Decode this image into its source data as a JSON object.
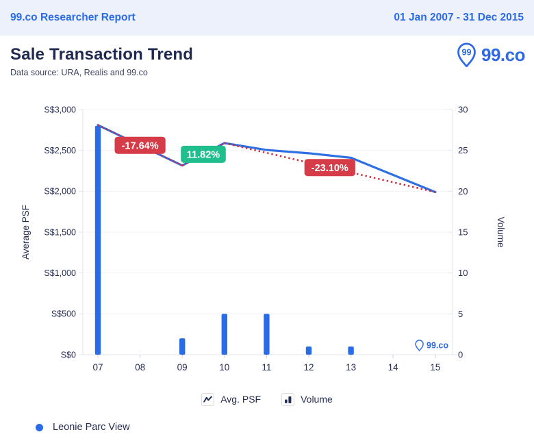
{
  "header": {
    "report_title": "99.co Researcher Report",
    "date_range": "01 Jan 2007 - 31 Dec 2015"
  },
  "title_block": {
    "title": "Sale Transaction Trend",
    "subtitle": "Data source: URA, Realis and 99.co",
    "brand": "99.co",
    "brand_pin_label": "99"
  },
  "chart_data": {
    "type": "line+bar combo",
    "categories": [
      "07",
      "08",
      "09",
      "10",
      "11",
      "12",
      "13",
      "14",
      "15"
    ],
    "series": [
      {
        "name": "Avg. PSF",
        "type": "line",
        "axis": "left",
        "color": "#2e6fe2",
        "values": [
          2810,
          null,
          2315,
          2590,
          2505,
          2465,
          2410,
          null,
          1990
        ]
      },
      {
        "name": "Volume",
        "type": "bar",
        "axis": "right",
        "color": "#2a6ce8",
        "values": [
          28,
          0,
          2,
          5,
          5,
          1,
          1,
          0,
          0
        ]
      }
    ],
    "trend_segments": [
      {
        "from": "07",
        "to": "09",
        "label": "-17.64%",
        "badge_color": "#d53c48"
      },
      {
        "from": "09",
        "to": "10",
        "label": "11.82%",
        "badge_color": "#20bd8d"
      },
      {
        "from": "10",
        "to": "15",
        "label": "-23.10%",
        "badge_color": "#d53c48"
      }
    ],
    "trend_line_color": "#d22b38",
    "ylabel_left": "Average PSF",
    "ylabel_right": "Volume",
    "y_left_ticks": [
      "S$0",
      "S$500",
      "S$1,000",
      "S$1,500",
      "S$2,000",
      "S$2,500",
      "S$3,000"
    ],
    "y_left_lim": [
      0,
      3000
    ],
    "y_right_ticks": [
      "0",
      "5",
      "10",
      "15",
      "20",
      "25",
      "30"
    ],
    "y_right_lim": [
      0,
      30
    ],
    "grid": true,
    "legend_position": "bottom",
    "watermark": "99.co"
  },
  "legend": [
    {
      "label": "Avg. PSF",
      "icon": "line-zigzag-icon"
    },
    {
      "label": "Volume",
      "icon": "mini-bars-icon"
    }
  ],
  "series_footer": {
    "label": "Leonie Parc View"
  },
  "colors": {
    "header_bg": "#ecf1fb",
    "header_text": "#2b6be6",
    "brand_blue": "#2e6ae3",
    "title_text": "#20294f",
    "axis_text": "#262f55",
    "axis_line": "#e2e5ec",
    "grid_line": "#f2f3f7",
    "tick_line": "#ccd0da",
    "badge_text": "#ffffff"
  }
}
